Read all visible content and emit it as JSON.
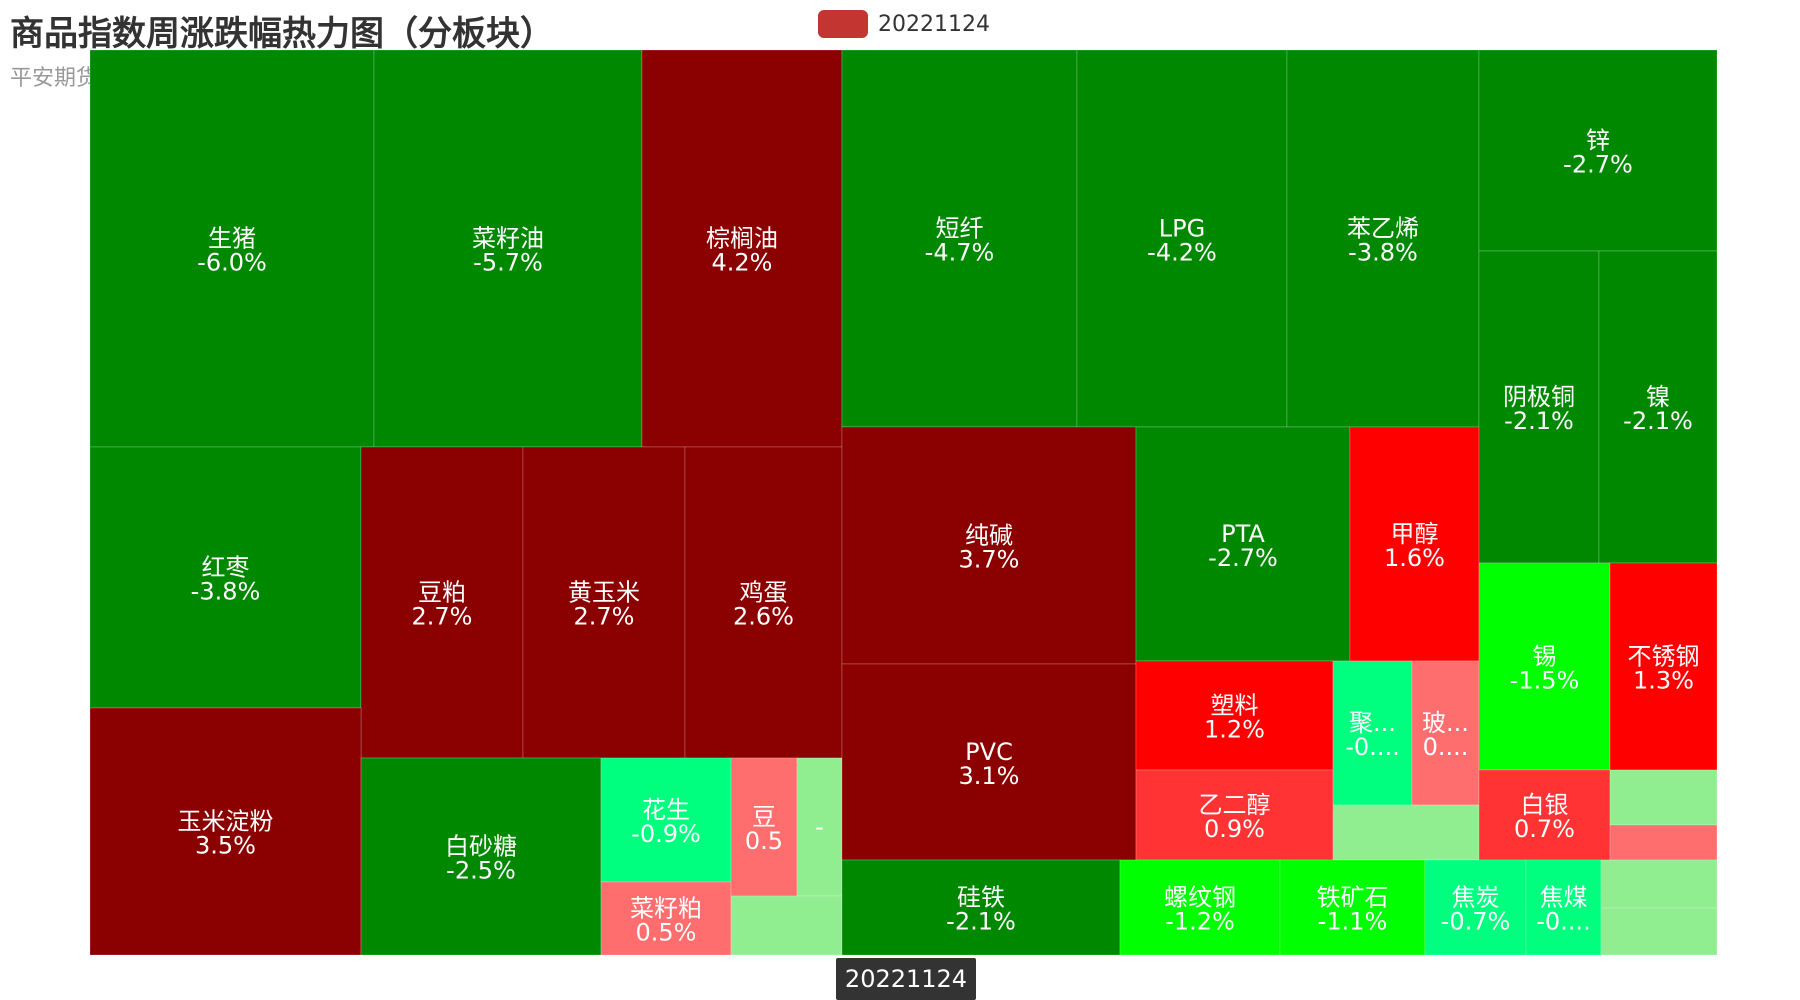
{
  "header": {
    "title": "商品指数周涨跌幅热力图（分板块）",
    "subtitle": "平安期货"
  },
  "legend": {
    "label": "20221124",
    "color": "#c23531"
  },
  "timeline": {
    "label": "20221124"
  },
  "chart_data": {
    "type": "treemap",
    "title": "商品指数周涨跌幅热力图（分板块）",
    "series_name": "20221124",
    "unit": "%",
    "color_scale": {
      "up_strong": "#8b0000",
      "up_mid": "#ff0000",
      "up_light": "#ff3333",
      "up_faint": "#ff6e6e",
      "down_strong": "#008800",
      "down_mid": "#00ff00",
      "down_light": "#00ff7f",
      "down_faint": "#90ee90"
    },
    "sectors": [
      {
        "items": [
          {
            "name": "生猪",
            "label": "-6.0%",
            "value": -6.0
          },
          {
            "name": "菜籽油",
            "label": "-5.7%",
            "value": -5.7
          },
          {
            "name": "棕榈油",
            "label": "4.2%",
            "value": 4.2
          },
          {
            "name": "红枣",
            "label": "-3.8%",
            "value": -3.8
          },
          {
            "name": "豆粕",
            "label": "2.7%",
            "value": 2.7
          },
          {
            "name": "黄玉米",
            "label": "2.7%",
            "value": 2.7
          },
          {
            "name": "鸡蛋",
            "label": "2.6%",
            "value": 2.6
          },
          {
            "name": "玉米淀粉",
            "label": "3.5%",
            "value": 3.5
          },
          {
            "name": "白砂糖",
            "label": "-2.5%",
            "value": -2.5
          },
          {
            "name": "花生",
            "label": "-0.9%",
            "value": -0.9
          },
          {
            "name": "菜籽粕",
            "label": "0.5%",
            "value": 0.5
          },
          {
            "name": "豆",
            "label": "0.5",
            "value": 0.5
          },
          {
            "name": "",
            "label": "-",
            "value": -0.3
          },
          {
            "name": "",
            "label": "",
            "value": -0.2
          }
        ]
      },
      {
        "items": [
          {
            "name": "短纤",
            "label": "-4.7%",
            "value": -4.7
          },
          {
            "name": "LPG",
            "label": "-4.2%",
            "value": -4.2
          },
          {
            "name": "苯乙烯",
            "label": "-3.8%",
            "value": -3.8
          },
          {
            "name": "纯碱",
            "label": "3.7%",
            "value": 3.7
          },
          {
            "name": "PVC",
            "label": "3.1%",
            "value": 3.1
          },
          {
            "name": "PTA",
            "label": "-2.7%",
            "value": -2.7
          },
          {
            "name": "甲醇",
            "label": "1.6%",
            "value": 1.6
          },
          {
            "name": "塑料",
            "label": "1.2%",
            "value": 1.2
          },
          {
            "name": "乙二醇",
            "label": "0.9%",
            "value": 0.9
          },
          {
            "name": "聚...",
            "label": "-0....",
            "value": -0.5
          },
          {
            "name": "玻...",
            "label": "0....",
            "value": 0.5
          },
          {
            "name": "",
            "label": "",
            "value": -0.2
          }
        ]
      },
      {
        "items": [
          {
            "name": "锌",
            "label": "-2.7%",
            "value": -2.7
          },
          {
            "name": "阴极铜",
            "label": "-2.1%",
            "value": -2.1
          },
          {
            "name": "镍",
            "label": "-2.1%",
            "value": -2.1
          },
          {
            "name": "锡",
            "label": "-1.5%",
            "value": -1.5
          },
          {
            "name": "不锈钢",
            "label": "1.3%",
            "value": 1.3
          },
          {
            "name": "白银",
            "label": "0.7%",
            "value": 0.7
          },
          {
            "name": "",
            "label": "",
            "value": -0.2
          },
          {
            "name": "",
            "label": "",
            "value": 0.3
          }
        ]
      },
      {
        "items": [
          {
            "name": "硅铁",
            "label": "-2.1%",
            "value": -2.1
          },
          {
            "name": "螺纹钢",
            "label": "-1.2%",
            "value": -1.2
          },
          {
            "name": "铁矿石",
            "label": "-1.1%",
            "value": -1.1
          },
          {
            "name": "焦炭",
            "label": "-0.7%",
            "value": -0.7
          },
          {
            "name": "焦煤",
            "label": "-0....",
            "value": -0.5
          },
          {
            "name": "",
            "label": "",
            "value": -0.2
          },
          {
            "name": "",
            "label": "",
            "value": -0.2
          }
        ]
      }
    ]
  }
}
